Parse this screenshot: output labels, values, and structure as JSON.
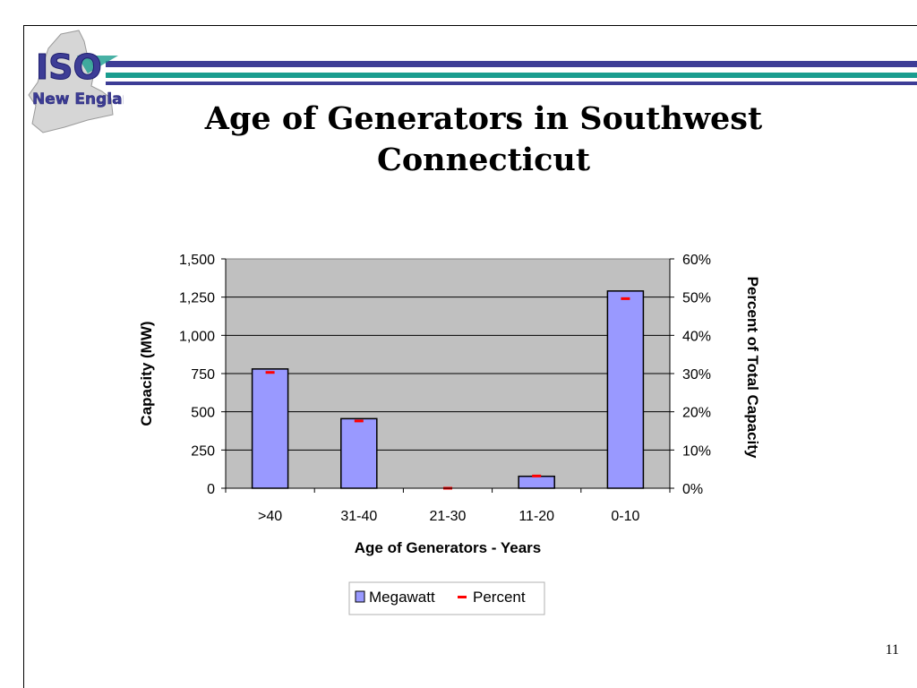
{
  "header": {
    "logo_line1": "ISO",
    "logo_line2": "New England",
    "title_line1": "Age of Generators in Southwest",
    "title_line2": "Connecticut"
  },
  "colors": {
    "band_blue": "#3d3d96",
    "band_teal": "#1a9d8f",
    "plot_bg": "#c0c0c0",
    "bar_fill": "#9999ff",
    "marker": "#ff0000"
  },
  "chart_data": {
    "type": "bar",
    "categories": [
      ">40",
      "31-40",
      "21-30",
      "11-20",
      "0-10"
    ],
    "series": [
      {
        "name": "Megawatt",
        "type": "bar",
        "axis": "left",
        "values": [
          780,
          455,
          0,
          78,
          1290
        ]
      },
      {
        "name": "Percent",
        "type": "marker",
        "axis": "right",
        "values": [
          30.3,
          17.6,
          0,
          3.2,
          49.6
        ]
      }
    ],
    "xlabel": "Age of Generators - Years",
    "ylabel": "Capacity (MW)",
    "y2label": "Percent of Total Capacity",
    "ylim": [
      0,
      1500
    ],
    "y2lim": [
      0,
      60
    ],
    "yticks": [
      "0",
      "250",
      "500",
      "750",
      "1,000",
      "1,250",
      "1,500"
    ],
    "y2ticks": [
      "0%",
      "10%",
      "20%",
      "30%",
      "40%",
      "50%",
      "60%"
    ],
    "grid": true,
    "legend_position": "bottom-center"
  },
  "footer": {
    "page_number": "11"
  }
}
